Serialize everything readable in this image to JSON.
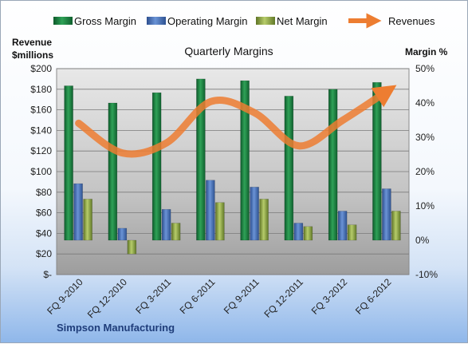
{
  "chart_data": {
    "type": "bar",
    "title": "Quarterly Margins",
    "footer": "Simpson Manufacturing",
    "left_axis": {
      "label_line1": "Revenue",
      "label_line2": "$millions",
      "ticks": [
        "$-",
        "$20",
        "$40",
        "$60",
        "$80",
        "$100",
        "$120",
        "$140",
        "$160",
        "$180",
        "$200"
      ],
      "range": [
        0,
        200
      ]
    },
    "right_axis": {
      "label": "Margin %",
      "ticks": [
        "-10%",
        "0%",
        "10%",
        "20%",
        "30%",
        "40%",
        "50%"
      ],
      "range": [
        -10,
        50
      ]
    },
    "categories": [
      "FQ 9-2010",
      "FQ 12-2010",
      "FQ 3-2011",
      "FQ 6-2011",
      "FQ 9-2011",
      "FQ 12-2011",
      "FQ 3-2012",
      "FQ 6-2012"
    ],
    "series": [
      {
        "name": "Gross Margin",
        "type": "bar",
        "axis": "right",
        "color": "#1f8a45",
        "values": [
          45,
          40,
          43,
          47,
          46.5,
          42,
          44,
          46
        ]
      },
      {
        "name": "Operating Margin",
        "type": "bar",
        "axis": "right",
        "color": "#4f79c2",
        "values": [
          16.5,
          3.5,
          9,
          17.5,
          15.5,
          5,
          8.5,
          15
        ]
      },
      {
        "name": "Net Margin",
        "type": "bar",
        "axis": "right",
        "color": "#97b04c",
        "values": [
          12,
          -4,
          5,
          11,
          12,
          4,
          4.5,
          8.5
        ]
      },
      {
        "name": "Revenues",
        "type": "line",
        "axis": "left",
        "color": "#ed7d31",
        "values": [
          147,
          118,
          128,
          168,
          157,
          125,
          150,
          178
        ]
      }
    ],
    "grid": true,
    "legend": "top"
  }
}
